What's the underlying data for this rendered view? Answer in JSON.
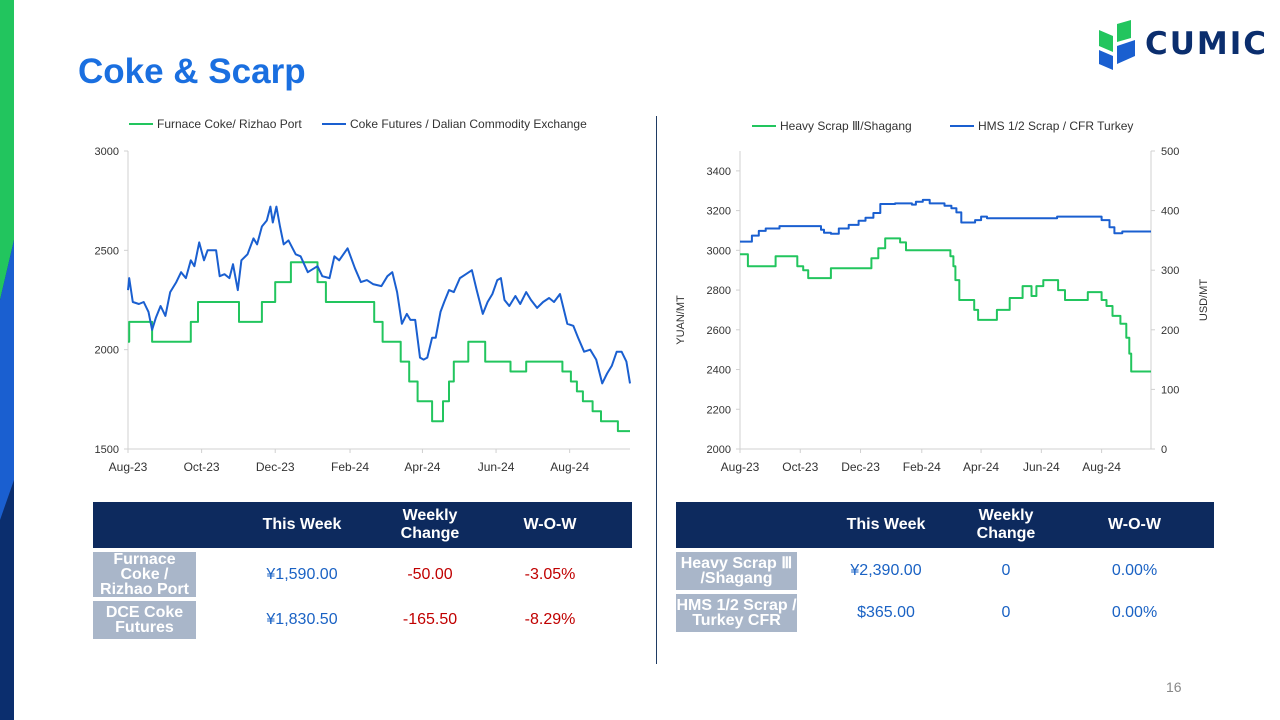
{
  "slide": {
    "title": "Coke & Scarp",
    "page_number": "16",
    "logo_text": "CUMIC",
    "colors": {
      "title": "#1a6fe0",
      "green": "#22c55e",
      "blue": "#1a5fd0",
      "table_header": "#0d2a5e",
      "row_label_bg": "#a9b6c9",
      "negative": "#c00000",
      "value": "#1a62c4"
    }
  },
  "chart_data": [
    {
      "type": "line",
      "title": "",
      "xlabel": "",
      "ylabel": "",
      "ylim": [
        1500,
        3000
      ],
      "yticks": [
        1500,
        2000,
        2500,
        3000
      ],
      "xlim": [
        "2023-08-01",
        "2024-09-20"
      ],
      "xtick_labels": [
        [
          "Aug-23",
          "2023-08-01"
        ],
        [
          "Oct-23",
          "2023-10-01"
        ],
        [
          "Dec-23",
          "2023-12-01"
        ],
        [
          "Feb-24",
          "2024-02-01"
        ],
        [
          "Apr-24",
          "2024-04-01"
        ],
        [
          "Jun-24",
          "2024-06-01"
        ],
        [
          "Aug-24",
          "2024-08-01"
        ]
      ],
      "legend_position": "top",
      "grid": false,
      "series": [
        {
          "name": "Furnace Coke/ Rizhao Port",
          "color": "#22c55e",
          "step": true,
          "points": [
            [
              "2023-08-01",
              2040
            ],
            [
              "2023-08-02",
              2140
            ],
            [
              "2023-08-21",
              2040
            ],
            [
              "2023-09-22",
              2140
            ],
            [
              "2023-09-28",
              2240
            ],
            [
              "2023-11-01",
              2140
            ],
            [
              "2023-11-20",
              2240
            ],
            [
              "2023-12-01",
              2340
            ],
            [
              "2023-12-14",
              2440
            ],
            [
              "2024-01-05",
              2340
            ],
            [
              "2024-01-12",
              2240
            ],
            [
              "2024-02-21",
              2140
            ],
            [
              "2024-02-28",
              2040
            ],
            [
              "2024-03-14",
              1940
            ],
            [
              "2024-03-21",
              1840
            ],
            [
              "2024-03-28",
              1740
            ],
            [
              "2024-04-09",
              1640
            ],
            [
              "2024-04-18",
              1740
            ],
            [
              "2024-04-23",
              1840
            ],
            [
              "2024-04-27",
              1940
            ],
            [
              "2024-05-09",
              2040
            ],
            [
              "2024-05-23",
              1940
            ],
            [
              "2024-06-13",
              1890
            ],
            [
              "2024-06-26",
              1940
            ],
            [
              "2024-07-26",
              1890
            ],
            [
              "2024-08-02",
              1840
            ],
            [
              "2024-08-07",
              1790
            ],
            [
              "2024-08-12",
              1740
            ],
            [
              "2024-08-20",
              1690
            ],
            [
              "2024-08-27",
              1640
            ],
            [
              "2024-09-10",
              1590
            ],
            [
              "2024-09-20",
              1590
            ]
          ]
        },
        {
          "name": "Coke Futures / Dalian Commodity Exchange",
          "color": "#1a5fd0",
          "step": false,
          "points": [
            [
              "2023-08-01",
              2300
            ],
            [
              "2023-08-02",
              2360
            ],
            [
              "2023-08-05",
              2240
            ],
            [
              "2023-08-10",
              2230
            ],
            [
              "2023-08-14",
              2240
            ],
            [
              "2023-08-18",
              2190
            ],
            [
              "2023-08-21",
              2100
            ],
            [
              "2023-08-24",
              2160
            ],
            [
              "2023-08-28",
              2220
            ],
            [
              "2023-09-01",
              2170
            ],
            [
              "2023-09-05",
              2290
            ],
            [
              "2023-09-10",
              2340
            ],
            [
              "2023-09-14",
              2390
            ],
            [
              "2023-09-18",
              2360
            ],
            [
              "2023-09-22",
              2450
            ],
            [
              "2023-09-25",
              2420
            ],
            [
              "2023-09-29",
              2540
            ],
            [
              "2023-10-03",
              2450
            ],
            [
              "2023-10-06",
              2500
            ],
            [
              "2023-10-13",
              2500
            ],
            [
              "2023-10-16",
              2370
            ],
            [
              "2023-10-20",
              2380
            ],
            [
              "2023-10-24",
              2360
            ],
            [
              "2023-10-27",
              2430
            ],
            [
              "2023-10-31",
              2300
            ],
            [
              "2023-11-03",
              2450
            ],
            [
              "2023-11-08",
              2480
            ],
            [
              "2023-11-13",
              2560
            ],
            [
              "2023-11-16",
              2530
            ],
            [
              "2023-11-20",
              2620
            ],
            [
              "2023-11-24",
              2650
            ],
            [
              "2023-11-27",
              2720
            ],
            [
              "2023-11-29",
              2640
            ],
            [
              "2023-12-02",
              2720
            ],
            [
              "2023-12-05",
              2620
            ],
            [
              "2023-12-08",
              2530
            ],
            [
              "2023-12-12",
              2550
            ],
            [
              "2023-12-18",
              2480
            ],
            [
              "2023-12-22",
              2470
            ],
            [
              "2023-12-28",
              2390
            ],
            [
              "2024-01-05",
              2420
            ],
            [
              "2024-01-09",
              2370
            ],
            [
              "2024-01-15",
              2360
            ],
            [
              "2024-01-19",
              2470
            ],
            [
              "2024-01-23",
              2450
            ],
            [
              "2024-01-30",
              2510
            ],
            [
              "2024-02-05",
              2410
            ],
            [
              "2024-02-10",
              2340
            ],
            [
              "2024-02-15",
              2350
            ],
            [
              "2024-02-20",
              2330
            ],
            [
              "2024-02-27",
              2320
            ],
            [
              "2024-03-03",
              2370
            ],
            [
              "2024-03-07",
              2390
            ],
            [
              "2024-03-11",
              2290
            ],
            [
              "2024-03-15",
              2130
            ],
            [
              "2024-03-19",
              2180
            ],
            [
              "2024-03-22",
              2150
            ],
            [
              "2024-03-26",
              2150
            ],
            [
              "2024-03-30",
              1960
            ],
            [
              "2024-04-02",
              1950
            ],
            [
              "2024-04-05",
              1960
            ],
            [
              "2024-04-09",
              2060
            ],
            [
              "2024-04-12",
              2060
            ],
            [
              "2024-04-16",
              2190
            ],
            [
              "2024-04-19",
              2240
            ],
            [
              "2024-04-23",
              2300
            ],
            [
              "2024-04-27",
              2290
            ],
            [
              "2024-05-02",
              2360
            ],
            [
              "2024-05-07",
              2380
            ],
            [
              "2024-05-12",
              2400
            ],
            [
              "2024-05-16",
              2300
            ],
            [
              "2024-05-21",
              2180
            ],
            [
              "2024-05-25",
              2240
            ],
            [
              "2024-05-29",
              2280
            ],
            [
              "2024-06-02",
              2350
            ],
            [
              "2024-06-05",
              2360
            ],
            [
              "2024-06-08",
              2250
            ],
            [
              "2024-06-12",
              2220
            ],
            [
              "2024-06-17",
              2270
            ],
            [
              "2024-06-21",
              2230
            ],
            [
              "2024-06-26",
              2290
            ],
            [
              "2024-06-30",
              2250
            ],
            [
              "2024-07-05",
              2210
            ],
            [
              "2024-07-10",
              2240
            ],
            [
              "2024-07-15",
              2260
            ],
            [
              "2024-07-19",
              2240
            ],
            [
              "2024-07-24",
              2280
            ],
            [
              "2024-07-30",
              2130
            ],
            [
              "2024-08-04",
              2120
            ],
            [
              "2024-08-08",
              2060
            ],
            [
              "2024-08-13",
              1990
            ],
            [
              "2024-08-18",
              2000
            ],
            [
              "2024-08-23",
              1950
            ],
            [
              "2024-08-28",
              1830
            ],
            [
              "2024-09-01",
              1880
            ],
            [
              "2024-09-05",
              1920
            ],
            [
              "2024-09-09",
              1990
            ],
            [
              "2024-09-13",
              1990
            ],
            [
              "2024-09-17",
              1940
            ],
            [
              "2024-09-20",
              1830
            ]
          ]
        }
      ]
    },
    {
      "type": "line",
      "title": "",
      "xlabel": "",
      "ylabel": "YUAN/MT",
      "y2label": "USD/MT",
      "ylim": [
        2000,
        3500
      ],
      "yticks": [
        2000,
        2200,
        2400,
        2600,
        2800,
        3000,
        3200,
        3400
      ],
      "y2lim": [
        0,
        500
      ],
      "y2ticks": [
        0,
        100,
        200,
        300,
        400,
        500
      ],
      "xlim": [
        "2023-08-01",
        "2024-09-20"
      ],
      "xtick_labels": [
        [
          "Aug-23",
          "2023-08-01"
        ],
        [
          "Oct-23",
          "2023-10-01"
        ],
        [
          "Dec-23",
          "2023-12-01"
        ],
        [
          "Feb-24",
          "2024-02-01"
        ],
        [
          "Apr-24",
          "2024-04-01"
        ],
        [
          "Jun-24",
          "2024-06-01"
        ],
        [
          "Aug-24",
          "2024-08-01"
        ]
      ],
      "legend_position": "top",
      "grid": false,
      "series": [
        {
          "name": "Heavy Scrap Ⅲ/Shagang",
          "color": "#22c55e",
          "axis": "left",
          "step": true,
          "points": [
            [
              "2023-08-01",
              2980
            ],
            [
              "2023-08-09",
              2920
            ],
            [
              "2023-09-06",
              2970
            ],
            [
              "2023-09-28",
              2920
            ],
            [
              "2023-10-04",
              2900
            ],
            [
              "2023-10-09",
              2860
            ],
            [
              "2023-10-25",
              2860
            ],
            [
              "2023-11-01",
              2910
            ],
            [
              "2023-12-12",
              2960
            ],
            [
              "2023-12-19",
              3010
            ],
            [
              "2023-12-26",
              3060
            ],
            [
              "2024-01-10",
              3040
            ],
            [
              "2024-01-16",
              3000
            ],
            [
              "2024-03-01",
              2970
            ],
            [
              "2024-03-04",
              2920
            ],
            [
              "2024-03-06",
              2850
            ],
            [
              "2024-03-10",
              2750
            ],
            [
              "2024-03-25",
              2700
            ],
            [
              "2024-03-29",
              2650
            ],
            [
              "2024-04-17",
              2700
            ],
            [
              "2024-04-30",
              2760
            ],
            [
              "2024-05-13",
              2820
            ],
            [
              "2024-05-22",
              2770
            ],
            [
              "2024-05-27",
              2820
            ],
            [
              "2024-06-03",
              2850
            ],
            [
              "2024-06-18",
              2800
            ],
            [
              "2024-06-25",
              2750
            ],
            [
              "2024-07-18",
              2790
            ],
            [
              "2024-08-01",
              2750
            ],
            [
              "2024-08-06",
              2720
            ],
            [
              "2024-08-12",
              2670
            ],
            [
              "2024-08-20",
              2630
            ],
            [
              "2024-08-26",
              2560
            ],
            [
              "2024-08-29",
              2480
            ],
            [
              "2024-08-31",
              2390
            ],
            [
              "2024-09-20",
              2390
            ]
          ]
        },
        {
          "name": "HMS 1/2 Scrap / CFR Turkey",
          "color": "#1a5fd0",
          "axis": "right",
          "step": true,
          "points": [
            [
              "2023-08-01",
              348
            ],
            [
              "2023-08-13",
              358
            ],
            [
              "2023-08-20",
              366
            ],
            [
              "2023-08-27",
              370
            ],
            [
              "2023-09-10",
              374
            ],
            [
              "2023-10-22",
              368
            ],
            [
              "2023-10-25",
              363
            ],
            [
              "2023-11-01",
              361
            ],
            [
              "2023-11-09",
              370
            ],
            [
              "2023-11-19",
              376
            ],
            [
              "2023-11-29",
              383
            ],
            [
              "2023-12-06",
              388
            ],
            [
              "2023-12-14",
              396
            ],
            [
              "2023-12-21",
              411
            ],
            [
              "2024-01-05",
              412
            ],
            [
              "2024-01-22",
              410
            ],
            [
              "2024-01-26",
              415
            ],
            [
              "2024-02-02",
              418
            ],
            [
              "2024-02-09",
              412
            ],
            [
              "2024-02-24",
              408
            ],
            [
              "2024-03-02",
              404
            ],
            [
              "2024-03-07",
              397
            ],
            [
              "2024-03-12",
              380
            ],
            [
              "2024-03-26",
              384
            ],
            [
              "2024-04-01",
              390
            ],
            [
              "2024-04-07",
              387
            ],
            [
              "2024-05-01",
              387
            ],
            [
              "2024-06-10",
              387
            ],
            [
              "2024-06-17",
              390
            ],
            [
              "2024-07-20",
              390
            ],
            [
              "2024-08-01",
              384
            ],
            [
              "2024-08-09",
              372
            ],
            [
              "2024-08-14",
              362
            ],
            [
              "2024-08-22",
              365
            ],
            [
              "2024-09-20",
              365
            ]
          ]
        }
      ]
    }
  ],
  "tables": {
    "coke": {
      "headers": [
        "",
        "This Week",
        "Weekly Change",
        "W-O-W"
      ],
      "rows": [
        {
          "label": "Furnace Coke / Rizhao Port",
          "this_week": "¥1,590.00",
          "weekly_change": "-50.00",
          "wow": "-3.05%"
        },
        {
          "label": "DCE  Coke Futures",
          "this_week": "¥1,830.50",
          "weekly_change": "-165.50",
          "wow": "-8.29%"
        }
      ]
    },
    "scrap": {
      "headers": [
        "",
        "This Week",
        "Weekly Change",
        "W-O-W"
      ],
      "rows": [
        {
          "label": "Heavy Scrap Ⅲ /Shagang",
          "this_week": "¥2,390.00",
          "weekly_change": "0",
          "wow": "0.00%"
        },
        {
          "label": "HMS 1/2 Scrap / Turkey CFR",
          "this_week": "$365.00",
          "weekly_change": "0",
          "wow": "0.00%"
        }
      ]
    }
  }
}
